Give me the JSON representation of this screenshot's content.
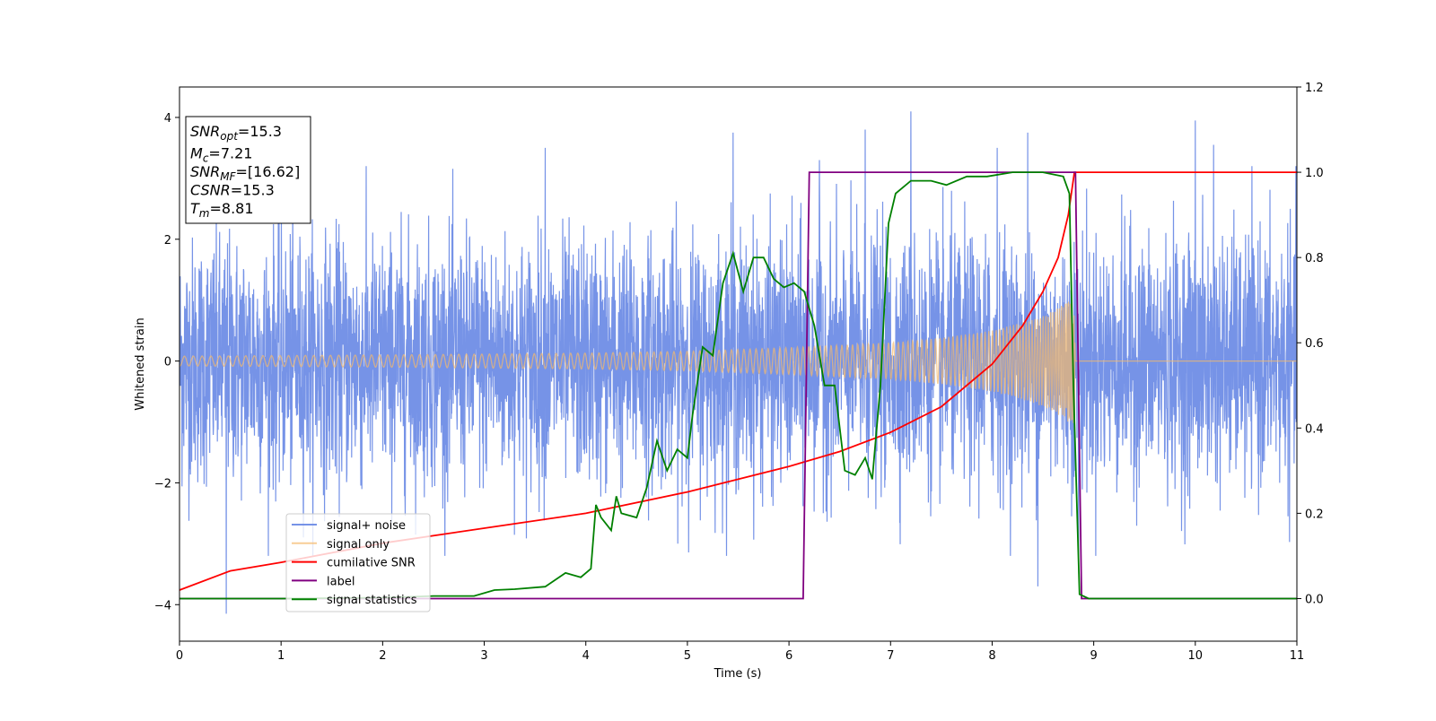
{
  "chart_data": {
    "type": "line",
    "xlabel": "Time (s)",
    "ylabel": "Whitened strain",
    "xlim": [
      0,
      11
    ],
    "ylim_left": [
      -4.6,
      4.5
    ],
    "ylim_right": [
      -0.1,
      1.2
    ],
    "x_ticks": [
      "0",
      "1",
      "2",
      "3",
      "4",
      "5",
      "6",
      "7",
      "8",
      "9",
      "10",
      "11"
    ],
    "y_ticks_left": [
      "4",
      "2",
      "0",
      "−2",
      "−4"
    ],
    "y_ticks_right": [
      "1.2",
      "1.0",
      "0.8",
      "0.6",
      "0.4",
      "0.2",
      "0.0"
    ],
    "info_box": [
      {
        "base": "SNR",
        "sub": "opt",
        "value": "=15.3"
      },
      {
        "base": "M",
        "sub": "c",
        "value": "=7.21"
      },
      {
        "base": "SNR",
        "sub": "MF",
        "value": "=[16.62]"
      },
      {
        "base": "CSNR",
        "sub": "",
        "value": "=15.3"
      },
      {
        "base": "T",
        "sub": "m",
        "value": "=8.81"
      }
    ],
    "legend_position": "lower-left",
    "series": [
      {
        "name": "signal+ noise",
        "axis": "left",
        "color": "#6f8de6",
        "description_points": {
          "x_range": [
            0,
            11
          ],
          "amplitude_std": 1.0,
          "notable_peaks": [
            [
              0.46,
              -4.15
            ],
            [
              3.6,
              3.5
            ],
            [
              5.45,
              3.75
            ],
            [
              6.3,
              3.3
            ],
            [
              6.75,
              3.8
            ],
            [
              7.2,
              4.1
            ],
            [
              8.05,
              3.5
            ],
            [
              8.35,
              3.75
            ],
            [
              10.0,
              3.95
            ],
            [
              10.18,
              3.55
            ],
            [
              8.45,
              -3.7
            ],
            [
              8.85,
              -3.25
            ]
          ]
        }
      },
      {
        "name": "signal only",
        "axis": "left",
        "color": "#f5b96b",
        "envelope": [
          [
            0,
            0.08
          ],
          [
            2,
            0.1
          ],
          [
            4,
            0.13
          ],
          [
            5,
            0.16
          ],
          [
            6,
            0.22
          ],
          [
            7,
            0.3
          ],
          [
            7.5,
            0.38
          ],
          [
            8,
            0.5
          ],
          [
            8.4,
            0.68
          ],
          [
            8.6,
            0.82
          ],
          [
            8.75,
            1.0
          ],
          [
            8.81,
            1.05
          ],
          [
            8.82,
            0.0
          ],
          [
            11,
            0.0
          ]
        ]
      },
      {
        "name": "cumilative SNR",
        "axis": "right",
        "color": "#ff0000",
        "x": [
          0,
          0.5,
          1,
          2,
          3,
          4,
          5,
          6,
          6.5,
          7,
          7.5,
          8,
          8.3,
          8.5,
          8.65,
          8.75,
          8.81,
          11
        ],
        "y": [
          0.02,
          0.065,
          0.085,
          0.13,
          0.165,
          0.2,
          0.25,
          0.31,
          0.345,
          0.39,
          0.45,
          0.55,
          0.64,
          0.72,
          0.8,
          0.9,
          1.0,
          1.0
        ]
      },
      {
        "name": "label",
        "axis": "right",
        "color": "#800080",
        "x": [
          0,
          6.14,
          6.2,
          8.82,
          8.88,
          11
        ],
        "y": [
          0,
          0,
          1,
          1,
          0,
          0
        ]
      },
      {
        "name": "signal statistics",
        "axis": "right",
        "color": "#008000",
        "x": [
          0,
          1,
          2,
          2.5,
          2.9,
          3.1,
          3.3,
          3.6,
          3.8,
          3.95,
          4.05,
          4.1,
          4.15,
          4.25,
          4.3,
          4.35,
          4.5,
          4.6,
          4.7,
          4.8,
          4.9,
          5.0,
          5.05,
          5.15,
          5.25,
          5.35,
          5.45,
          5.55,
          5.65,
          5.75,
          5.85,
          5.95,
          6.05,
          6.15,
          6.25,
          6.35,
          6.45,
          6.55,
          6.65,
          6.75,
          6.82,
          6.9,
          6.98,
          7.05,
          7.2,
          7.4,
          7.55,
          7.75,
          7.95,
          8.2,
          8.5,
          8.7,
          8.76,
          8.8,
          8.86,
          8.95,
          9.2,
          11
        ],
        "y": [
          0.0,
          0.0,
          0.002,
          0.006,
          0.006,
          0.02,
          0.022,
          0.028,
          0.06,
          0.05,
          0.07,
          0.22,
          0.19,
          0.16,
          0.24,
          0.2,
          0.19,
          0.26,
          0.37,
          0.3,
          0.35,
          0.33,
          0.43,
          0.59,
          0.57,
          0.74,
          0.81,
          0.72,
          0.8,
          0.8,
          0.75,
          0.73,
          0.74,
          0.72,
          0.64,
          0.5,
          0.5,
          0.3,
          0.29,
          0.33,
          0.28,
          0.5,
          0.88,
          0.95,
          0.98,
          0.98,
          0.97,
          0.99,
          0.99,
          1.0,
          1.0,
          0.99,
          0.95,
          0.5,
          0.01,
          0.0,
          0.0,
          0.0
        ]
      }
    ]
  }
}
